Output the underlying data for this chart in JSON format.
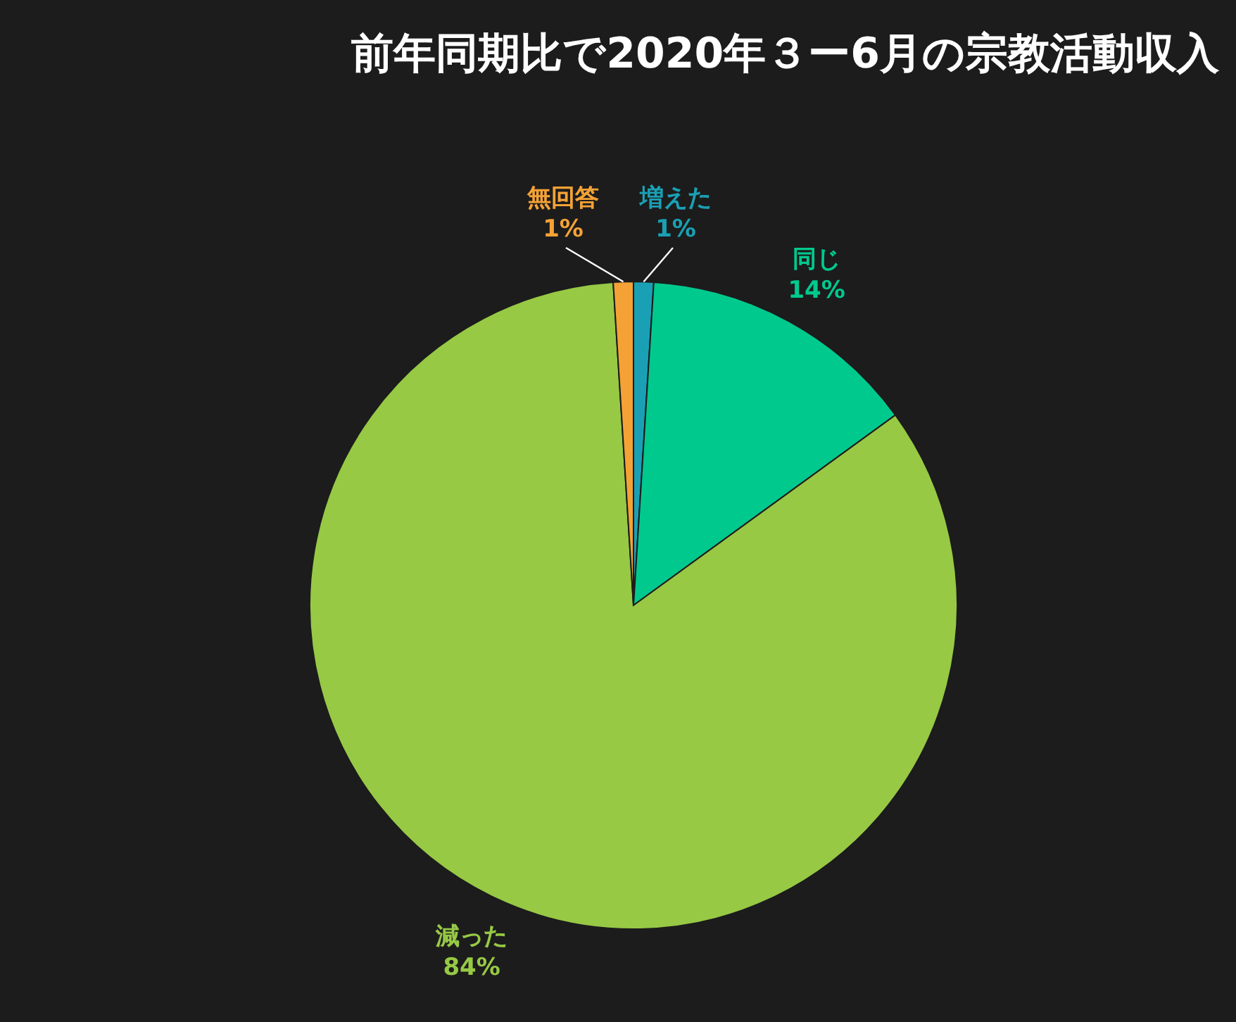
{
  "chart_data": {
    "type": "pie",
    "title": "前年同期比で2020年３ー6月の宗教活動収入",
    "categories": [
      "増えた",
      "同じ",
      "減った",
      "無回答"
    ],
    "values": [
      1,
      14,
      84,
      1
    ],
    "colors": [
      "#1aa0b4",
      "#00c98e",
      "#97c945",
      "#f4a236"
    ],
    "value_labels": [
      "1%",
      "14%",
      "84%",
      "1%"
    ]
  }
}
